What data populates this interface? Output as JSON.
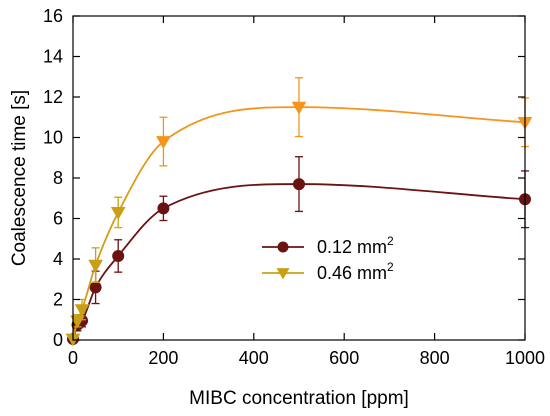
{
  "chart_data": {
    "type": "line",
    "title": "",
    "xlabel": "MIBC concentration [ppm]",
    "ylabel": "Coalescence time [s]",
    "xlim": [
      0,
      1000
    ],
    "ylim": [
      0,
      16
    ],
    "x_ticks": [
      0,
      200,
      400,
      600,
      800,
      1000
    ],
    "y_ticks": [
      0,
      2,
      4,
      6,
      8,
      10,
      12,
      14,
      16
    ],
    "grid": false,
    "legend_position": "center-right",
    "series": [
      {
        "name": "0.12 mm",
        "name_superscript": "2",
        "color": "#6b1212",
        "marker": "circle",
        "x": [
          0,
          10,
          20,
          50,
          100,
          200,
          500,
          1000
        ],
        "y": [
          0.05,
          0.75,
          0.95,
          2.6,
          4.15,
          6.5,
          7.7,
          6.95
        ],
        "err": [
          0,
          0.3,
          0.3,
          0.8,
          0.8,
          0.6,
          1.35,
          1.4
        ]
      },
      {
        "name": "0.46 mm",
        "name_superscript": "2",
        "color": "#c8a016",
        "color_end": "#f7941d",
        "marker": "triangle-down",
        "x": [
          0,
          10,
          20,
          50,
          100,
          200,
          500,
          1000
        ],
        "y": [
          0.05,
          0.95,
          1.5,
          3.7,
          6.3,
          9.8,
          11.5,
          10.75
        ],
        "err": [
          0,
          0.3,
          0.5,
          0.85,
          0.75,
          1.2,
          1.45,
          1.2
        ]
      }
    ]
  }
}
